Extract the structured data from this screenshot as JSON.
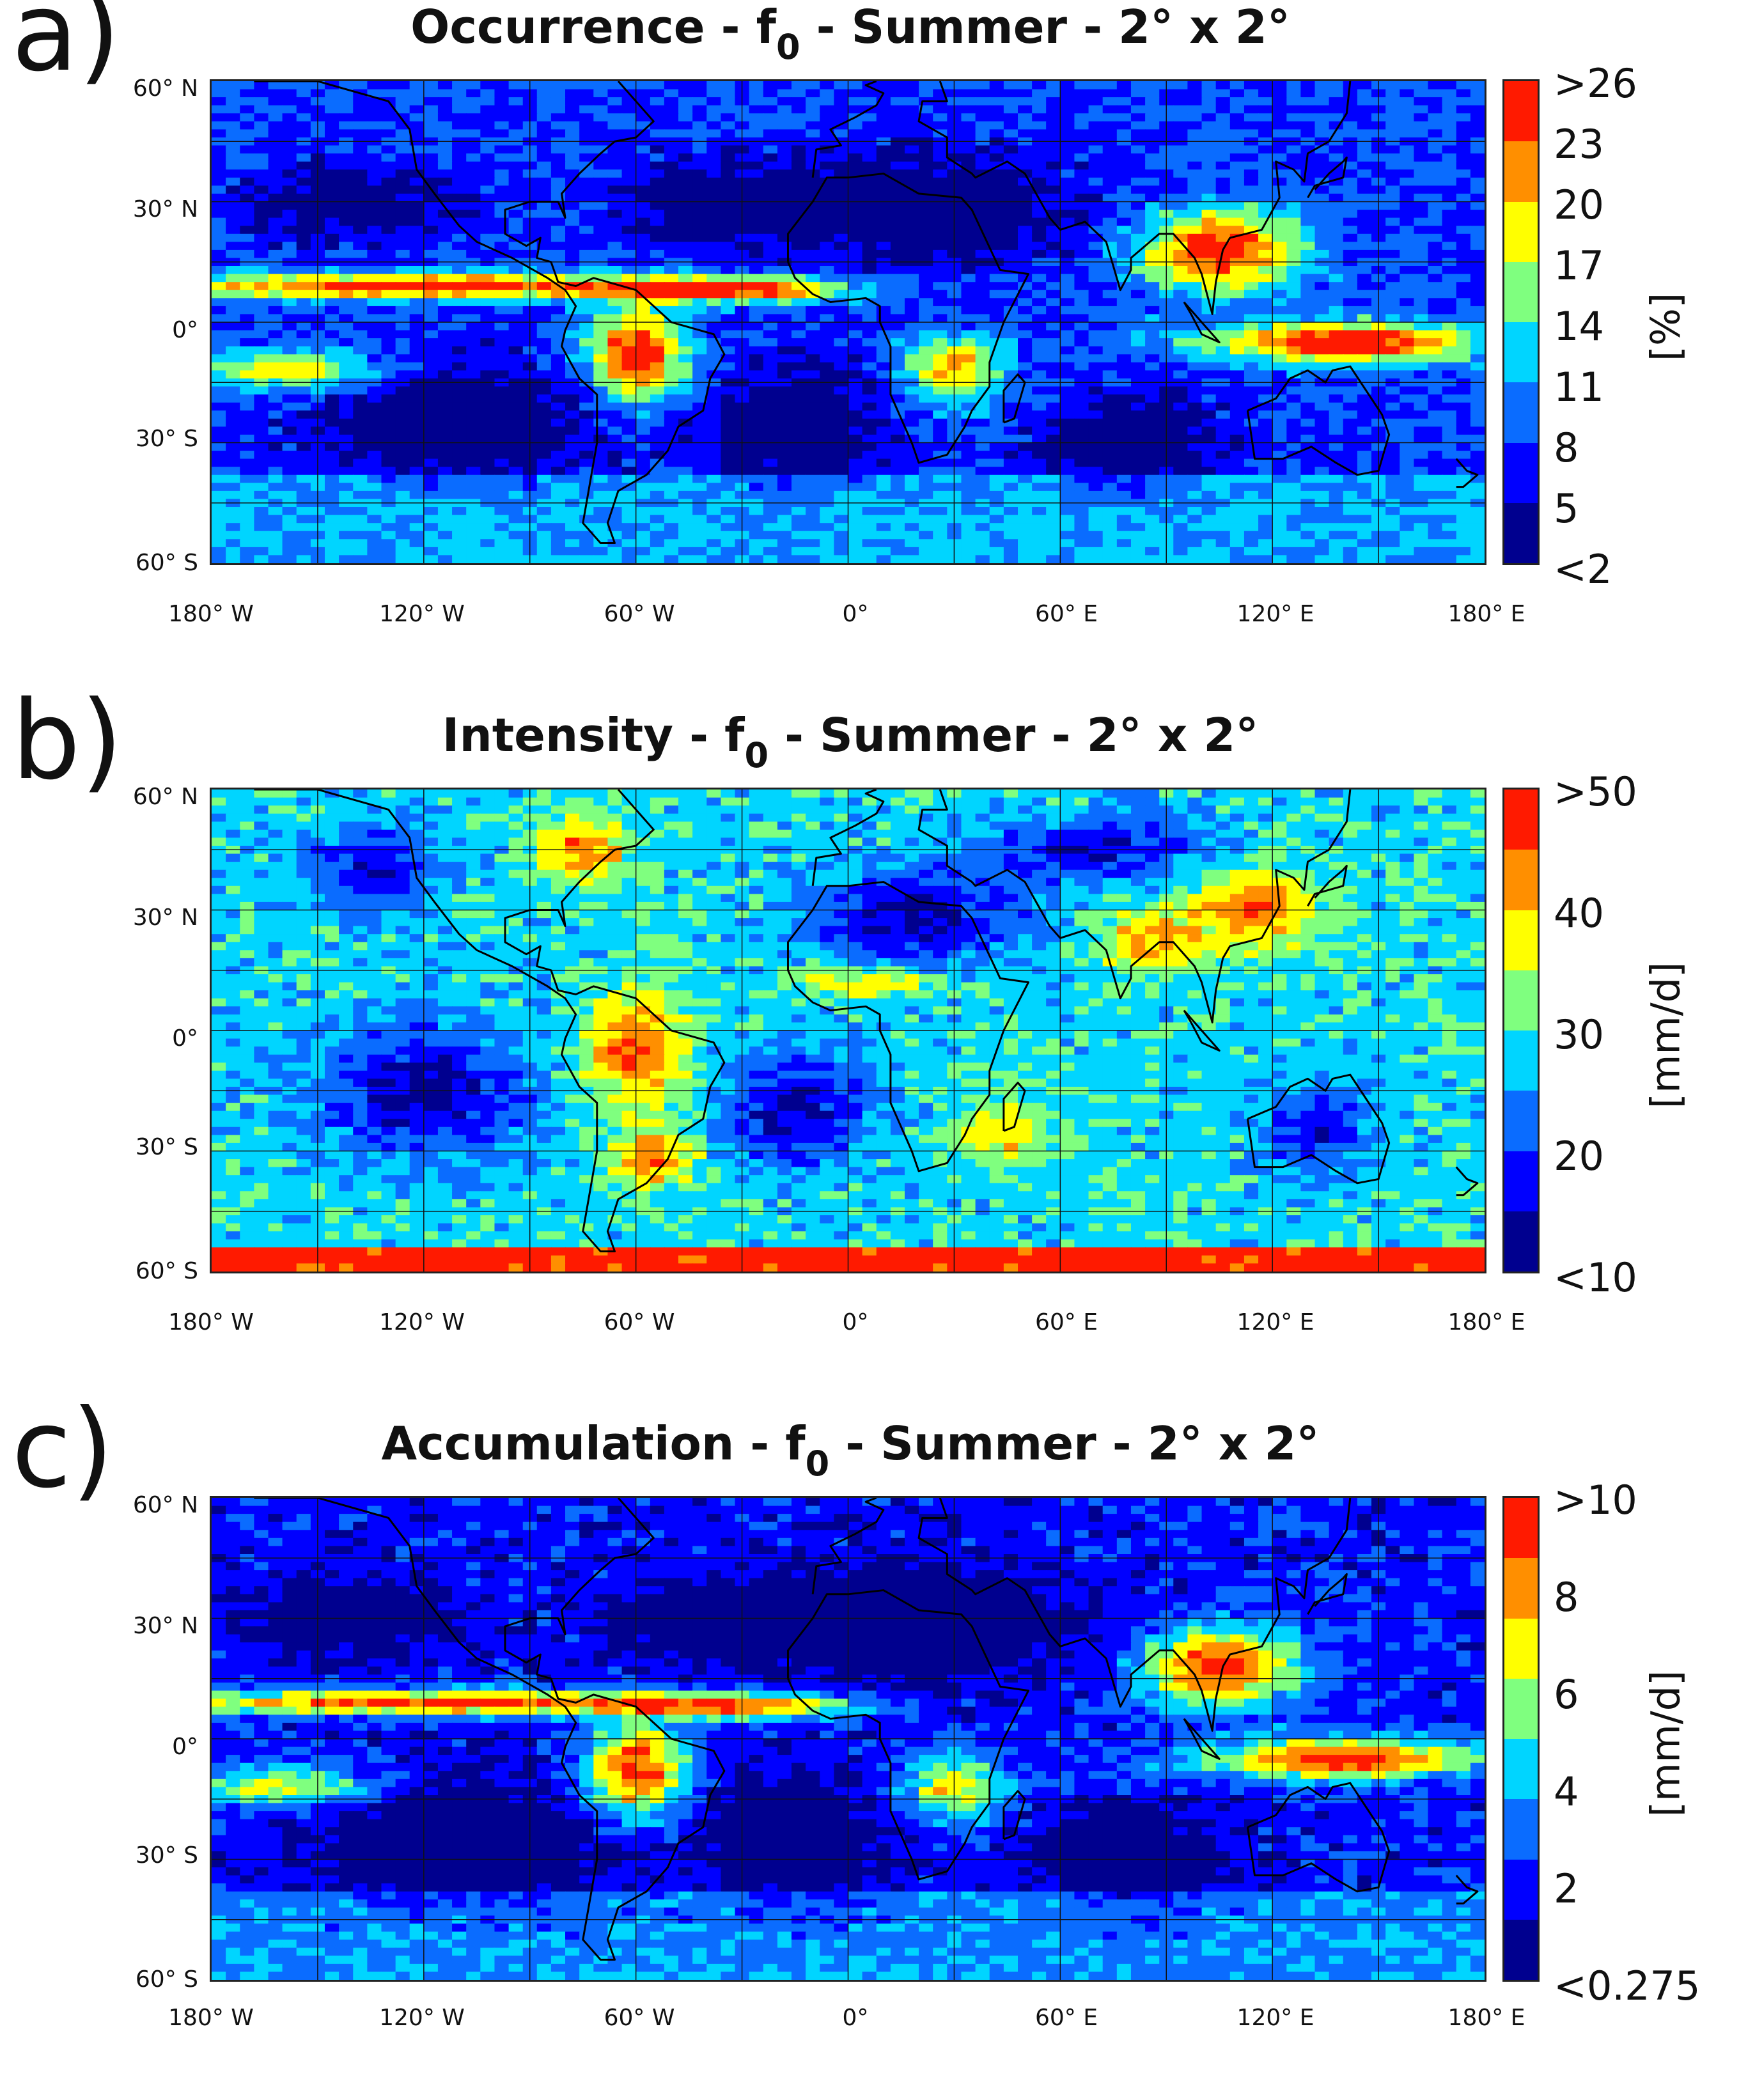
{
  "palette": [
    "#00008f",
    "#0000ff",
    "#0a6cff",
    "#00d5ff",
    "#7fff7f",
    "#ffff00",
    "#ff8f00",
    "#ff1a00"
  ],
  "lat_ticks": [
    "60° N",
    "30° N",
    "0°",
    "30° S",
    "60° S"
  ],
  "lon_ticks": [
    "180° W",
    "120° W",
    "60° W",
    "0°",
    "60° E",
    "120° E",
    "180° E"
  ],
  "panels": [
    {
      "letter": "a)",
      "title_pre": "Occurrence - f",
      "title_sub": "0",
      "title_post": " - Summer - 2° x 2°",
      "unit": "[%]",
      "ticks": [
        ">26",
        "23",
        "20",
        "17",
        "14",
        "11",
        "8",
        "5",
        "<2"
      ],
      "field": "occurrence"
    },
    {
      "letter": "b)",
      "title_pre": "Intensity - f",
      "title_sub": "0",
      "title_post": " - Summer - 2° x 2°",
      "unit": "[mm/d]",
      "ticks": [
        ">50",
        "40",
        "30",
        "20",
        "<10"
      ],
      "field": "intensity"
    },
    {
      "letter": "c)",
      "title_pre": "Accumulation - f",
      "title_sub": "0",
      "title_post": " - Summer - 2° x 2°",
      "unit": "[mm/d]",
      "ticks": [
        ">10",
        "8",
        "6",
        "4",
        "2",
        "<0.275"
      ],
      "field": "accumulation"
    }
  ]
}
